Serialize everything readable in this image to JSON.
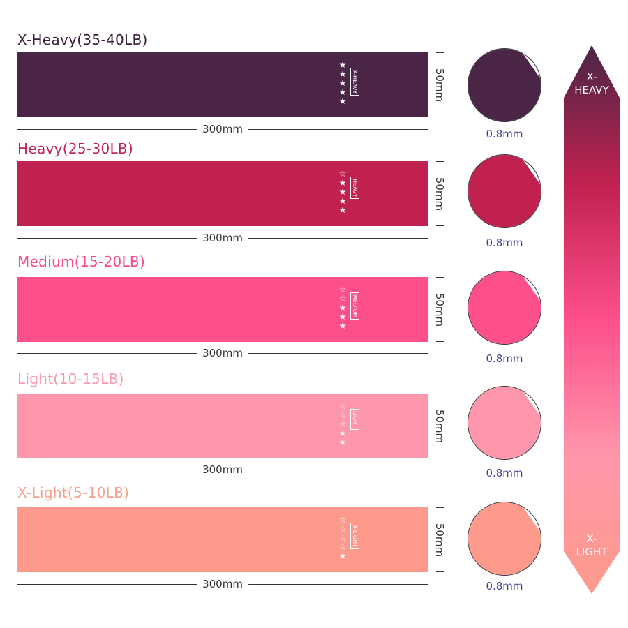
{
  "bands": [
    {
      "title": "X-Heavy(35-40LB)",
      "title_color": "#3a2038",
      "color": "#4a2545",
      "tag": "X-HEAVY",
      "stars_filled": 5,
      "stars_total": 5,
      "length": "300mm",
      "width": "50mm",
      "thickness": "0.8mm"
    },
    {
      "title": "Heavy(25-30LB)",
      "title_color": "#c12452",
      "color": "#c0214f",
      "tag": "HEAVY",
      "stars_filled": 4,
      "stars_total": 5,
      "length": "300mm",
      "width": "50mm",
      "thickness": "0.8mm"
    },
    {
      "title": "Medium(15-20LB)",
      "title_color": "#f8478a",
      "color": "#fd4f8b",
      "tag": "MEDIUM",
      "stars_filled": 3,
      "stars_total": 5,
      "length": "300mm",
      "width": "50mm",
      "thickness": "0.8mm"
    },
    {
      "title": "Light(10-15LB)",
      "title_color": "#f89aae",
      "color": "#fe97ab",
      "tag": "LIGHT",
      "stars_filled": 2,
      "stars_total": 5,
      "length": "300mm",
      "width": "50mm",
      "thickness": "0.8mm"
    },
    {
      "title": "X-Light(5-10LB)",
      "title_color": "#f7a08f",
      "color": "#fd9a8b",
      "tag": "X-LIGHT",
      "stars_filled": 1,
      "stars_total": 5,
      "length": "300mm",
      "width": "50mm",
      "thickness": "0.8mm"
    }
  ],
  "scale_arrow": {
    "top_label": "X-\nHEAVY",
    "bottom_label": "X-\nLIGHT",
    "gradient": [
      "#4a2545",
      "#c0214f",
      "#fd4f8b",
      "#fe97ab",
      "#fd9a8b"
    ]
  }
}
